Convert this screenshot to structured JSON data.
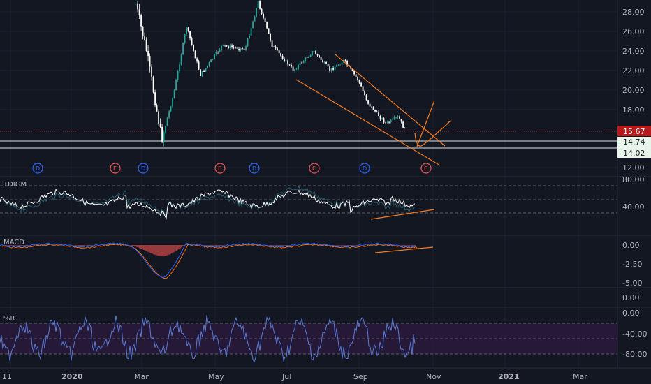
{
  "colors": {
    "background": "#131722",
    "grid": "#1e222d",
    "separator": "#2a2e39",
    "text": "#b2b5be",
    "candle_up": "#26a69a",
    "candle_down": "#ffffff",
    "drawing": "#f57c1f",
    "last_price_bg": "#b71c1c",
    "level_bg": "#e8f5e9",
    "dividend": "#2962ff",
    "earnings": "#ef5350",
    "indicator_line": "#ffffff",
    "macd_line": "#2962ff",
    "signal_line": "#ff6d00",
    "hist_pos": "#26a69a",
    "hist_neg": "#ef5350",
    "wr_line": "#5b7bd6",
    "wr_band": "#2b1a3d"
  },
  "price_axis": {
    "ticks": [
      "28.00",
      "26.00",
      "24.00",
      "22.00",
      "20.00",
      "18.00",
      "12.00"
    ]
  },
  "price_tags": {
    "last": "15.67",
    "level1": "14.74",
    "level2": "14.02"
  },
  "time_axis": {
    "labels": [
      "11",
      "2020",
      "Mar",
      "May",
      "Jul",
      "Sep",
      "Nov",
      "2021",
      "Mar"
    ]
  },
  "events": [
    "D",
    "E",
    "D",
    "E",
    "D",
    "E",
    "D",
    "E"
  ],
  "tdi_pane": {
    "title": "TDIGM",
    "ticks": [
      "80.00",
      "40.00"
    ]
  },
  "macd_pane": {
    "title": "MACD",
    "ticks": [
      "0.00",
      "-2.50",
      "-5.00"
    ]
  },
  "empty_pane": {
    "ticks": [
      "0.00"
    ]
  },
  "wr_pane": {
    "title": "%R",
    "ticks": [
      "0.00",
      "-40.00",
      "-80.00"
    ]
  },
  "chart_data": {
    "type": "candlestick",
    "instrument_last_price": 15.67,
    "horizontal_levels": [
      14.74,
      14.02
    ],
    "price_range": [
      11.5,
      29.0
    ],
    "approx_path": [
      {
        "x": "2020-02-25",
        "close": 28.8
      },
      {
        "x": "2020-03-05",
        "close": 24.0
      },
      {
        "x": "2020-03-18",
        "close": 14.9
      },
      {
        "x": "2020-03-28",
        "close": 19.5
      },
      {
        "x": "2020-04-08",
        "close": 26.5
      },
      {
        "x": "2020-04-20",
        "close": 21.5
      },
      {
        "x": "2020-05-08",
        "close": 24.5
      },
      {
        "x": "2020-05-28",
        "close": 24.2
      },
      {
        "x": "2020-06-08",
        "close": 29.0
      },
      {
        "x": "2020-06-20",
        "close": 24.5
      },
      {
        "x": "2020-07-08",
        "close": 22.0
      },
      {
        "x": "2020-07-25",
        "close": 24.0
      },
      {
        "x": "2020-08-08",
        "close": 22.0
      },
      {
        "x": "2020-08-20",
        "close": 23.0
      },
      {
        "x": "2020-09-01",
        "close": 21.0
      },
      {
        "x": "2020-09-10",
        "close": 18.5
      },
      {
        "x": "2020-09-25",
        "close": 16.5
      },
      {
        "x": "2020-10-05",
        "close": 17.2
      },
      {
        "x": "2020-10-12",
        "close": 15.6
      }
    ]
  }
}
